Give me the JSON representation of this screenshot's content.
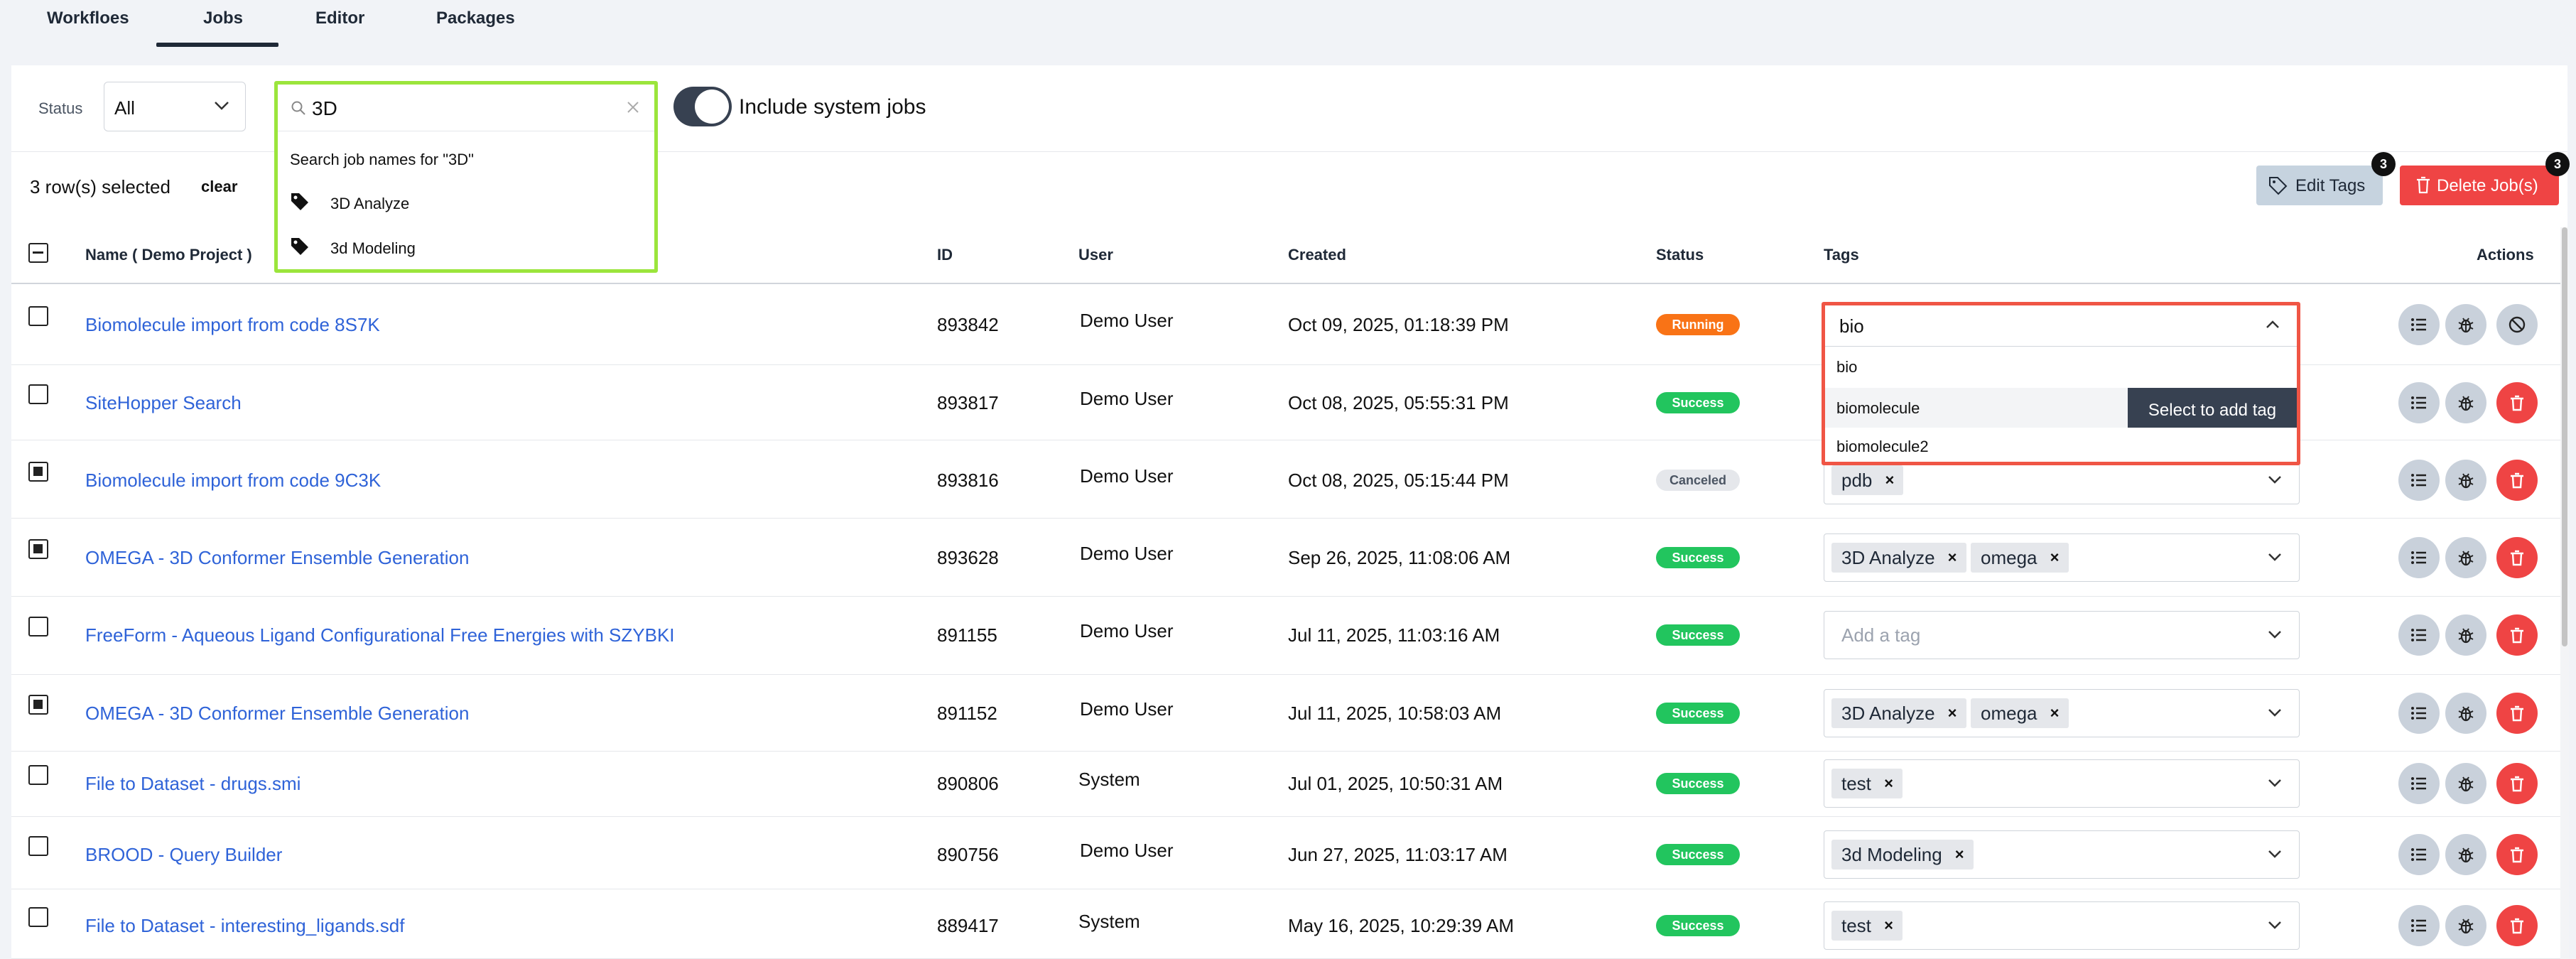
{
  "nav": {
    "tabs": [
      {
        "label": "Workfloes"
      },
      {
        "label": "Jobs"
      },
      {
        "label": "Editor"
      },
      {
        "label": "Packages"
      }
    ]
  },
  "filters": {
    "status_label": "Status",
    "status_value": "All",
    "search_value": "3D",
    "search_hint": "Search job names for \"3D\"",
    "suggestions": [
      "3D Analyze",
      "3d Modeling"
    ],
    "include_system_label": "Include system jobs",
    "include_system_on": true
  },
  "selection": {
    "text": "3 row(s) selected",
    "clear_label": "clear",
    "edit_tags_label": "Edit Tags",
    "edit_tags_count": "3",
    "delete_label": "Delete Job(s)",
    "delete_count": "3"
  },
  "table": {
    "headers": {
      "name": "Name ( Demo Project )",
      "id": "ID",
      "user": "User",
      "created": "Created",
      "status": "Status",
      "tags": "Tags",
      "actions": "Actions"
    },
    "rows": [
      {
        "name": "Biomolecule import from code 8S7K",
        "id": "893842",
        "user": "Demo User",
        "created": "Oct 09, 2025, 01:18:39 PM",
        "status": "Running",
        "checked": false,
        "tags": []
      },
      {
        "name": "SiteHopper Search",
        "id": "893817",
        "user": "Demo User",
        "created": "Oct 08, 2025, 05:55:31 PM",
        "status": "Success",
        "checked": false,
        "tags": []
      },
      {
        "name": "Biomolecule import from code 9C3K",
        "id": "893816",
        "user": "Demo User",
        "created": "Oct 08, 2025, 05:15:44 PM",
        "status": "Canceled",
        "checked": true,
        "tags": [
          "pdb"
        ]
      },
      {
        "name": "OMEGA - 3D Conformer Ensemble Generation",
        "id": "893628",
        "user": "Demo User",
        "created": "Sep 26, 2025, 11:08:06 AM",
        "status": "Success",
        "checked": true,
        "tags": [
          "3D Analyze",
          "omega"
        ]
      },
      {
        "name": "FreeForm - Aqueous Ligand Configurational Free Energies with SZYBKI",
        "id": "891155",
        "user": "Demo User",
        "created": "Jul 11, 2025, 11:03:16 AM",
        "status": "Success",
        "checked": false,
        "tags": []
      },
      {
        "name": "OMEGA - 3D Conformer Ensemble Generation",
        "id": "891152",
        "user": "Demo User",
        "created": "Jul 11, 2025, 10:58:03 AM",
        "status": "Success",
        "checked": true,
        "tags": [
          "3D Analyze",
          "omega"
        ]
      },
      {
        "name": "File to Dataset - drugs.smi",
        "id": "890806",
        "user": "System",
        "created": "Jul 01, 2025, 10:50:31 AM",
        "status": "Success",
        "checked": false,
        "tags": [
          "test"
        ]
      },
      {
        "name": "BROOD - Query Builder",
        "id": "890756",
        "user": "Demo User",
        "created": "Jun 27, 2025, 11:03:17 AM",
        "status": "Success",
        "checked": false,
        "tags": [
          "3d Modeling"
        ]
      },
      {
        "name": "File to Dataset - interesting_ligands.sdf",
        "id": "889417",
        "user": "System",
        "created": "May 16, 2025, 10:29:39 AM",
        "status": "Success",
        "checked": false,
        "tags": [
          "test"
        ]
      }
    ],
    "add_tag_placeholder": "Add a tag"
  },
  "tag_dropdown": {
    "input_value": "bio",
    "options": [
      "bio",
      "biomolecule",
      "biomolecule2"
    ],
    "tooltip": "Select to add tag"
  },
  "colors": {
    "link": "#2f63d8",
    "success": "#22c55e",
    "running": "#f97316",
    "danger": "#ef4444",
    "search_highlight": "#9be53c",
    "dropdown_highlight": "#f05545"
  }
}
